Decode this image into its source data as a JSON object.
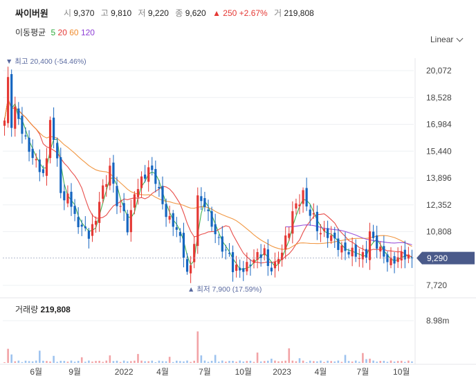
{
  "stock": {
    "name": "싸이버원",
    "open_label": "시",
    "open": "9,370",
    "high_label": "고",
    "high": "9,810",
    "low_label": "저",
    "low": "9,220",
    "close_label": "종",
    "close": "9,620",
    "change_arrow": "▲",
    "change": "250",
    "change_pct": "+2.67%",
    "volume_label": "거",
    "volume": "219,808"
  },
  "moving_average": {
    "label": "이동평균",
    "periods": [
      {
        "text": "5",
        "color": "#2eaa3c"
      },
      {
        "text": "20",
        "color": "#e53935"
      },
      {
        "text": "60",
        "color": "#f08c2e"
      },
      {
        "text": "120",
        "color": "#8e3fd6"
      }
    ]
  },
  "scale_select": {
    "value": "Linear"
  },
  "colors": {
    "up": "#e53935",
    "down": "#1565c0",
    "badge": "#4a5a8a",
    "annotation": "#5a6aa0"
  },
  "chart_data": {
    "type": "candlestick",
    "y_ticks": [
      "20,072",
      "18,528",
      "16,984",
      "15,440",
      "13,896",
      "12,352",
      "10,808",
      "9,290",
      "7,720"
    ],
    "ylim": [
      7720,
      20072
    ],
    "x_ticks": [
      "6월",
      "9월",
      "2022",
      "4월",
      "7월",
      "10월",
      "2023",
      "4월",
      "7월",
      "10월"
    ],
    "current_price": "9,290",
    "max_annotation": {
      "label": "최고",
      "value": "20,400",
      "pct": "(-54.46%)",
      "price": 20400
    },
    "min_annotation": {
      "label": "최저",
      "value": "7,900",
      "pct": "(17.59%)",
      "price": 7900
    },
    "price_anchors": [
      [
        0,
        17200
      ],
      [
        1,
        19400
      ],
      [
        2,
        16900
      ],
      [
        3,
        17800
      ],
      [
        5,
        16800
      ],
      [
        7,
        15500
      ],
      [
        9,
        14600
      ],
      [
        11,
        14200
      ],
      [
        12,
        15000
      ],
      [
        13,
        17600
      ],
      [
        14,
        15900
      ],
      [
        15,
        14900
      ],
      [
        16,
        13100
      ],
      [
        17,
        12300
      ],
      [
        18,
        13200
      ],
      [
        20,
        11700
      ],
      [
        22,
        10900
      ],
      [
        24,
        10600
      ],
      [
        26,
        11600
      ],
      [
        27,
        12800
      ],
      [
        29,
        13600
      ],
      [
        30,
        14500
      ],
      [
        31,
        13300
      ],
      [
        32,
        12600
      ],
      [
        34,
        12000
      ],
      [
        35,
        11000
      ],
      [
        36,
        11700
      ],
      [
        37,
        12900
      ],
      [
        39,
        13800
      ],
      [
        41,
        14600
      ],
      [
        43,
        13700
      ],
      [
        45,
        12300
      ],
      [
        47,
        11600
      ],
      [
        49,
        11000
      ],
      [
        50,
        10200
      ],
      [
        51,
        9400
      ],
      [
        52,
        8400
      ],
      [
        53,
        8800
      ],
      [
        54,
        10500
      ],
      [
        55,
        12800
      ],
      [
        57,
        12300
      ],
      [
        58,
        11600
      ],
      [
        60,
        10800
      ],
      [
        62,
        10000
      ],
      [
        64,
        9300
      ],
      [
        65,
        8600
      ],
      [
        67,
        8700
      ],
      [
        69,
        8900
      ],
      [
        71,
        9100
      ],
      [
        73,
        9500
      ],
      [
        74,
        9800
      ],
      [
        75,
        8900
      ],
      [
        77,
        8800
      ],
      [
        79,
        9600
      ],
      [
        81,
        11000
      ],
      [
        82,
        12100
      ],
      [
        84,
        12600
      ],
      [
        85,
        12900
      ],
      [
        86,
        12100
      ],
      [
        88,
        11700
      ],
      [
        89,
        11100
      ],
      [
        91,
        10700
      ],
      [
        93,
        10400
      ],
      [
        95,
        10100
      ],
      [
        97,
        9800
      ],
      [
        99,
        9500
      ],
      [
        101,
        9300
      ],
      [
        103,
        9700
      ],
      [
        104,
        10800
      ],
      [
        105,
        10300
      ],
      [
        107,
        9600
      ],
      [
        108,
        9400
      ],
      [
        110,
        9200
      ],
      [
        112,
        9300
      ],
      [
        114,
        9350
      ],
      [
        116,
        9290
      ]
    ],
    "volume_label": "거래량",
    "volume_value": "219,808",
    "volume_axis_label": "8.98m",
    "volume_ylim": [
      0,
      8980000
    ],
    "volume_spikes": [
      [
        1,
        3000000
      ],
      [
        2,
        1800000
      ],
      [
        10,
        2600000
      ],
      [
        14,
        1500000
      ],
      [
        22,
        1200000
      ],
      [
        30,
        1600000
      ],
      [
        38,
        1900000
      ],
      [
        47,
        1300000
      ],
      [
        55,
        6700000
      ],
      [
        56,
        1600000
      ],
      [
        60,
        1700000
      ],
      [
        72,
        2200000
      ],
      [
        76,
        900000
      ],
      [
        81,
        3100000
      ],
      [
        84,
        1000000
      ],
      [
        97,
        1700000
      ],
      [
        102,
        2100000
      ],
      [
        103,
        800000
      ],
      [
        104,
        900000
      ]
    ]
  }
}
